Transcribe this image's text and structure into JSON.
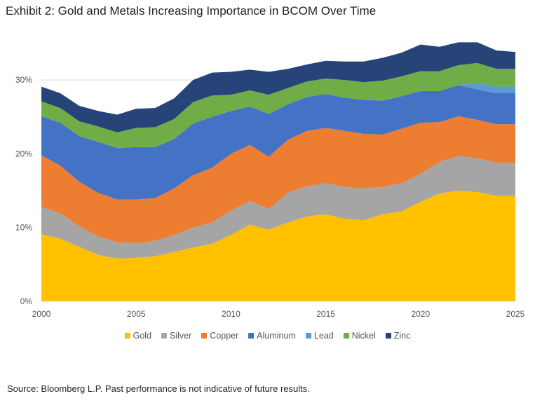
{
  "title": "Exhibit 2: Gold and Metals Increasing Importance in BCOM Over Time",
  "source": "Source: Bloomberg L.P. Past performance is not indicative of future results.",
  "chart_data": {
    "type": "area",
    "stacked": true,
    "x": [
      2000,
      2001,
      2002,
      2003,
      2004,
      2005,
      2006,
      2007,
      2008,
      2009,
      2010,
      2011,
      2012,
      2013,
      2014,
      2015,
      2016,
      2017,
      2018,
      2019,
      2020,
      2021,
      2022,
      2023,
      2024,
      2025
    ],
    "xticks": [
      "2000",
      "2005",
      "2010",
      "2015",
      "2020",
      "2025"
    ],
    "yticks": [
      "0%",
      "10%",
      "20%",
      "30%"
    ],
    "ylim": [
      0,
      35
    ],
    "grid": true,
    "legend": "bottom",
    "series": [
      {
        "name": "Gold",
        "color": "#FFC000",
        "values": [
          9.1,
          8.5,
          7.4,
          6.3,
          5.8,
          5.9,
          6.1,
          6.7,
          7.3,
          7.8,
          9.0,
          10.4,
          9.7,
          10.7,
          11.5,
          11.8,
          11.2,
          11.0,
          11.8,
          12.2,
          13.5,
          14.6,
          15.0,
          14.8,
          14.3,
          14.3
        ]
      },
      {
        "name": "Silver",
        "color": "#A5A5A5",
        "values": [
          3.7,
          3.4,
          2.8,
          2.5,
          2.2,
          2.0,
          2.1,
          2.3,
          2.7,
          2.9,
          3.3,
          3.2,
          2.8,
          4.0,
          4.1,
          4.2,
          4.3,
          4.3,
          3.7,
          3.8,
          3.8,
          4.3,
          4.7,
          4.6,
          4.5,
          4.4
        ]
      },
      {
        "name": "Copper",
        "color": "#ED7D31",
        "values": [
          7.0,
          6.5,
          6.0,
          5.9,
          5.8,
          5.9,
          5.8,
          6.3,
          7.1,
          7.4,
          7.7,
          7.6,
          7.1,
          7.2,
          7.5,
          7.5,
          7.6,
          7.4,
          7.1,
          7.4,
          6.9,
          5.4,
          5.4,
          5.2,
          5.2,
          5.3
        ]
      },
      {
        "name": "Aluminum",
        "color": "#4472C4",
        "values": [
          5.3,
          5.8,
          6.2,
          6.9,
          7.0,
          7.1,
          6.9,
          6.7,
          7.0,
          6.9,
          5.8,
          5.2,
          5.8,
          4.8,
          4.6,
          4.6,
          4.5,
          4.6,
          4.6,
          4.4,
          4.3,
          4.2,
          4.2,
          4.1,
          4.2,
          4.2
        ]
      },
      {
        "name": "Lead",
        "color": "#5B9BD5",
        "values": [
          0,
          0,
          0,
          0,
          0,
          0,
          0,
          0,
          0,
          0,
          0,
          0,
          0,
          0,
          0,
          0,
          0,
          0,
          0,
          0,
          0,
          0,
          0,
          0.9,
          0.9,
          0.9
        ]
      },
      {
        "name": "Nickel",
        "color": "#70AD47",
        "values": [
          2.0,
          2.0,
          2.0,
          2.1,
          2.1,
          2.6,
          2.7,
          2.7,
          2.9,
          2.9,
          2.2,
          2.2,
          2.6,
          2.2,
          2.1,
          2.1,
          2.4,
          2.4,
          2.7,
          2.7,
          2.7,
          2.7,
          2.7,
          2.7,
          2.4,
          2.4
        ]
      },
      {
        "name": "Zinc",
        "color": "#264478",
        "values": [
          2.0,
          2.0,
          2.1,
          2.1,
          2.4,
          2.6,
          2.6,
          2.8,
          3.0,
          3.1,
          3.1,
          2.8,
          3.1,
          2.6,
          2.3,
          2.4,
          2.5,
          2.8,
          3.1,
          3.2,
          3.6,
          3.3,
          3.1,
          2.8,
          2.5,
          2.3
        ]
      }
    ]
  }
}
